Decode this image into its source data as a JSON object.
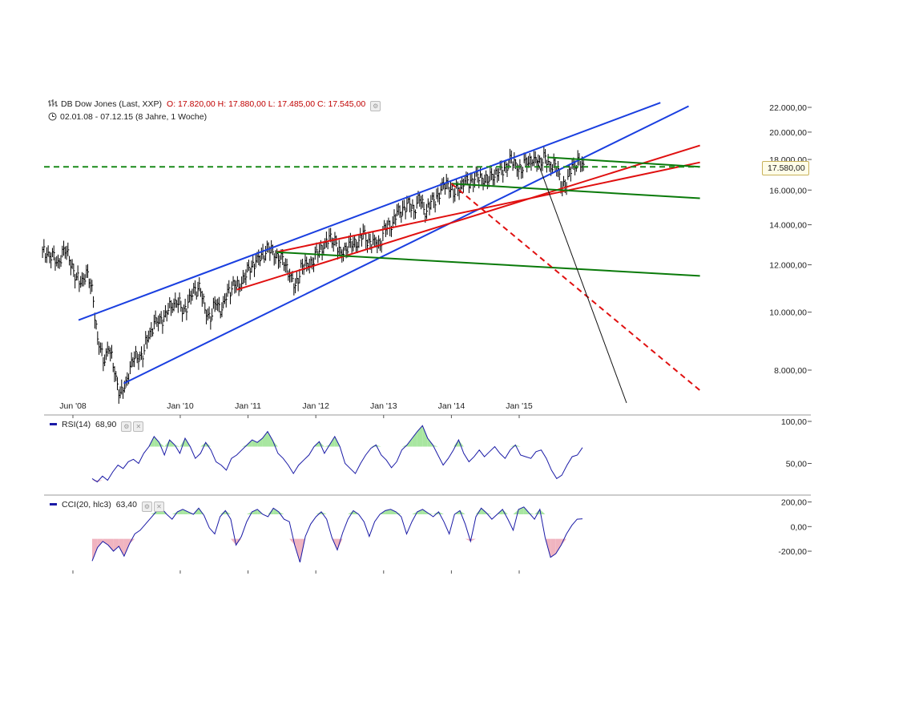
{
  "header": {
    "instrument": "DB Dow Jones (Last, XXP)",
    "ohlc": "O: 17.820,00  H: 17.880,00  L: 17.485,00  C: 17.545,00",
    "range": "02.01.08 - 07.12.15 (8 Jahre, 1 Woche)"
  },
  "icons": {
    "bars": "ohlc-bars-icon",
    "clock": "clock-icon",
    "settings": "gear-icon",
    "close": "close-icon"
  },
  "last_price_label": "17.580,00",
  "rsi": {
    "label": "RSI(14)",
    "value": "68,90"
  },
  "cci": {
    "label": "CCI(20, hlc3)",
    "value": "63,40"
  },
  "colors": {
    "price_bars": "#000000",
    "blue_channel": "#1a3fe0",
    "red_channel": "#e01010",
    "green_channel": "#0a7a0a",
    "green_dashed": "#1a8a1a",
    "indicator_line": "#1a1aa6",
    "overbought_fill": "#a8e6a0",
    "oversold_fill": "#f0b4c0",
    "grid": "#bbbbbb"
  },
  "chart_data": [
    {
      "type": "line",
      "chart": "price",
      "scale": "log",
      "ylim": [
        7000,
        23500
      ],
      "y_ticks": [
        {
          "value": 8000,
          "label": "8.000,00"
        },
        {
          "value": 10000,
          "label": "10.000,00"
        },
        {
          "value": 12000,
          "label": "12.000,00"
        },
        {
          "value": 14000,
          "label": "14.000,00"
        },
        {
          "value": 16000,
          "label": "16.000,00"
        },
        {
          "value": 18000,
          "label": "18.000,00"
        },
        {
          "value": 20000,
          "label": "20.000,00"
        },
        {
          "value": 22000,
          "label": "22.000,00"
        }
      ],
      "x_ticks": [
        "Jun '08",
        "Jan '10",
        "Jan '11",
        "Jan '12",
        "Jan '13",
        "Jan '14",
        "Jan '15"
      ],
      "x_tick_dates": [
        "2008-06",
        "2010-01",
        "2011-01",
        "2012-01",
        "2013-01",
        "2014-01",
        "2015-01"
      ],
      "series": [
        {
          "kind": "weekly-ohlc",
          "points": [
            [
              "2008-01",
              12600
            ],
            [
              "2008-02",
              12300
            ],
            [
              "2008-03",
              12100
            ],
            [
              "2008-04",
              12650
            ],
            [
              "2008-05",
              12500
            ],
            [
              "2008-06",
              11400
            ],
            [
              "2008-07",
              11300
            ],
            [
              "2008-08",
              11500
            ],
            [
              "2008-09",
              11000
            ],
            [
              "2008-10",
              8900
            ],
            [
              "2008-11",
              8400
            ],
            [
              "2008-12",
              8700
            ],
            [
              "2009-01",
              8000
            ],
            [
              "2009-02",
              7200
            ],
            [
              "2009-03",
              7600
            ],
            [
              "2009-04",
              8200
            ],
            [
              "2009-05",
              8500
            ],
            [
              "2009-06",
              8450
            ],
            [
              "2009-07",
              9200
            ],
            [
              "2009-08",
              9500
            ],
            [
              "2009-09",
              9700
            ],
            [
              "2009-10",
              9850
            ],
            [
              "2009-11",
              10300
            ],
            [
              "2009-12",
              10450
            ],
            [
              "2010-01",
              10100
            ],
            [
              "2010-02",
              10300
            ],
            [
              "2010-03",
              10850
            ],
            [
              "2010-04",
              11000
            ],
            [
              "2010-05",
              10150
            ],
            [
              "2010-06",
              9800
            ],
            [
              "2010-07",
              10450
            ],
            [
              "2010-08",
              10050
            ],
            [
              "2010-09",
              10750
            ],
            [
              "2010-10",
              11100
            ],
            [
              "2010-11",
              11000
            ],
            [
              "2010-12",
              11550
            ],
            [
              "2011-01",
              11850
            ],
            [
              "2011-02",
              12200
            ],
            [
              "2011-03",
              12300
            ],
            [
              "2011-04",
              12800
            ],
            [
              "2011-05",
              12550
            ],
            [
              "2011-06",
              12400
            ],
            [
              "2011-07",
              12150
            ],
            [
              "2011-08",
              11600
            ],
            [
              "2011-09",
              10900
            ],
            [
              "2011-10",
              11900
            ],
            [
              "2011-11",
              11950
            ],
            [
              "2011-12",
              12200
            ],
            [
              "2012-01",
              12600
            ],
            [
              "2012-02",
              12950
            ],
            [
              "2012-03",
              13200
            ],
            [
              "2012-04",
              13200
            ],
            [
              "2012-05",
              12400
            ],
            [
              "2012-06",
              12900
            ],
            [
              "2012-07",
              13000
            ],
            [
              "2012-08",
              13100
            ],
            [
              "2012-09",
              13450
            ],
            [
              "2012-10",
              13100
            ],
            [
              "2012-11",
              13000
            ],
            [
              "2012-12",
              13100
            ],
            [
              "2013-01",
              13850
            ],
            [
              "2013-02",
              14050
            ],
            [
              "2013-03",
              14550
            ],
            [
              "2013-04",
              14850
            ],
            [
              "2013-05",
              15100
            ],
            [
              "2013-06",
              14900
            ],
            [
              "2013-07",
              15500
            ],
            [
              "2013-08",
              14800
            ],
            [
              "2013-09",
              15150
            ],
            [
              "2013-10",
              15550
            ],
            [
              "2013-11",
              16050
            ],
            [
              "2013-12",
              16550
            ],
            [
              "2014-01",
              15700
            ],
            [
              "2014-02",
              16300
            ],
            [
              "2014-03",
              16450
            ],
            [
              "2014-04",
              16550
            ],
            [
              "2014-05",
              16700
            ],
            [
              "2014-06",
              16850
            ],
            [
              "2014-07",
              16550
            ],
            [
              "2014-08",
              17100
            ],
            [
              "2014-09",
              17050
            ],
            [
              "2014-10",
              17400
            ],
            [
              "2014-11",
              17800
            ],
            [
              "2014-12",
              17800
            ],
            [
              "2015-01",
              17150
            ],
            [
              "2015-02",
              18150
            ],
            [
              "2015-03",
              17800
            ],
            [
              "2015-04",
              17850
            ],
            [
              "2015-05",
              18000
            ],
            [
              "2015-06",
              17600
            ],
            [
              "2015-07",
              17700
            ],
            [
              "2015-08",
              16500
            ],
            [
              "2015-09",
              16300
            ],
            [
              "2015-10",
              17650
            ],
            [
              "2015-11",
              17700
            ],
            [
              "2015-12",
              17545
            ]
          ]
        }
      ],
      "trendlines": [
        {
          "color": "blue",
          "style": "solid",
          "from": [
            "2008-07",
            9700
          ],
          "to": [
            "2017-02",
            22400
          ]
        },
        {
          "color": "blue",
          "style": "solid",
          "from": [
            "2009-03",
            7600
          ],
          "to": [
            "2017-07",
            22100
          ]
        },
        {
          "color": "red",
          "style": "solid",
          "from": [
            "2010-11",
            10900
          ],
          "to": [
            "2017-09",
            19000
          ]
        },
        {
          "color": "red",
          "style": "solid",
          "from": [
            "2011-06",
            12600
          ],
          "to": [
            "2017-09",
            17800
          ]
        },
        {
          "color": "green",
          "style": "solid",
          "from": [
            "2011-06",
            12600
          ],
          "to": [
            "2017-09",
            11500
          ]
        },
        {
          "color": "green",
          "style": "solid",
          "from": [
            "2014-01",
            16400
          ],
          "to": [
            "2017-09",
            15500
          ]
        },
        {
          "color": "green",
          "style": "solid",
          "from": [
            "2015-06",
            18150
          ],
          "to": [
            "2017-09",
            17500
          ]
        },
        {
          "color": "green",
          "style": "dashed",
          "from": [
            "2007-11",
            17500
          ],
          "to": [
            "2017-09",
            17500
          ]
        },
        {
          "color": "red",
          "style": "dashed",
          "from": [
            "2014-01",
            16400
          ],
          "to": [
            "2017-09",
            7400
          ]
        },
        {
          "color": "black",
          "style": "solid",
          "from": [
            "2015-04",
            18100
          ],
          "to": [
            "2016-08",
            7050
          ]
        }
      ]
    },
    {
      "type": "line",
      "chart": "RSI(14)",
      "ylim": [
        20,
        100
      ],
      "y_ticks": [
        {
          "value": 50,
          "label": "50,00"
        },
        {
          "value": 100,
          "label": "100,00"
        }
      ],
      "overbought": 70,
      "oversold": 30,
      "values": [
        32,
        28,
        35,
        30,
        40,
        48,
        44,
        52,
        55,
        50,
        62,
        70,
        82,
        75,
        60,
        78,
        72,
        62,
        80,
        70,
        56,
        62,
        75,
        66,
        52,
        48,
        42,
        56,
        60,
        66,
        72,
        78,
        75,
        80,
        88,
        77,
        62,
        56,
        48,
        38,
        48,
        54,
        60,
        70,
        76,
        62,
        72,
        82,
        70,
        50,
        44,
        38,
        50,
        60,
        68,
        72,
        60,
        54,
        45,
        52,
        66,
        72,
        80,
        88,
        95,
        80,
        72,
        60,
        48,
        56,
        66,
        78,
        62,
        52,
        58,
        66,
        58,
        64,
        70,
        62,
        56,
        66,
        72,
        60,
        58,
        56,
        64,
        66,
        56,
        42,
        32,
        36,
        48,
        58,
        60,
        68.9
      ]
    },
    {
      "type": "line",
      "chart": "CCI(20, hlc3)",
      "ylim": [
        -330,
        230
      ],
      "y_ticks": [
        {
          "value": -200,
          "label": "-200,00"
        },
        {
          "value": 0,
          "label": "0,00"
        },
        {
          "value": 200,
          "label": "200,00"
        }
      ],
      "overbought": 100,
      "oversold": -100,
      "values": [
        -280,
        -170,
        -120,
        -150,
        -200,
        -160,
        -240,
        -140,
        -60,
        -30,
        20,
        70,
        120,
        150,
        100,
        60,
        120,
        140,
        120,
        100,
        150,
        90,
        -10,
        -60,
        80,
        130,
        60,
        -150,
        -80,
        40,
        120,
        140,
        100,
        80,
        150,
        120,
        60,
        40,
        -150,
        -290,
        -80,
        20,
        80,
        120,
        60,
        -90,
        -190,
        -50,
        60,
        130,
        100,
        40,
        -80,
        40,
        100,
        130,
        140,
        120,
        80,
        -60,
        40,
        120,
        140,
        110,
        80,
        120,
        40,
        -60,
        100,
        130,
        20,
        -120,
        80,
        150,
        110,
        60,
        100,
        140,
        60,
        -30,
        140,
        160,
        110,
        60,
        140,
        -90,
        -250,
        -220,
        -150,
        -60,
        10,
        60,
        63.4
      ]
    }
  ]
}
